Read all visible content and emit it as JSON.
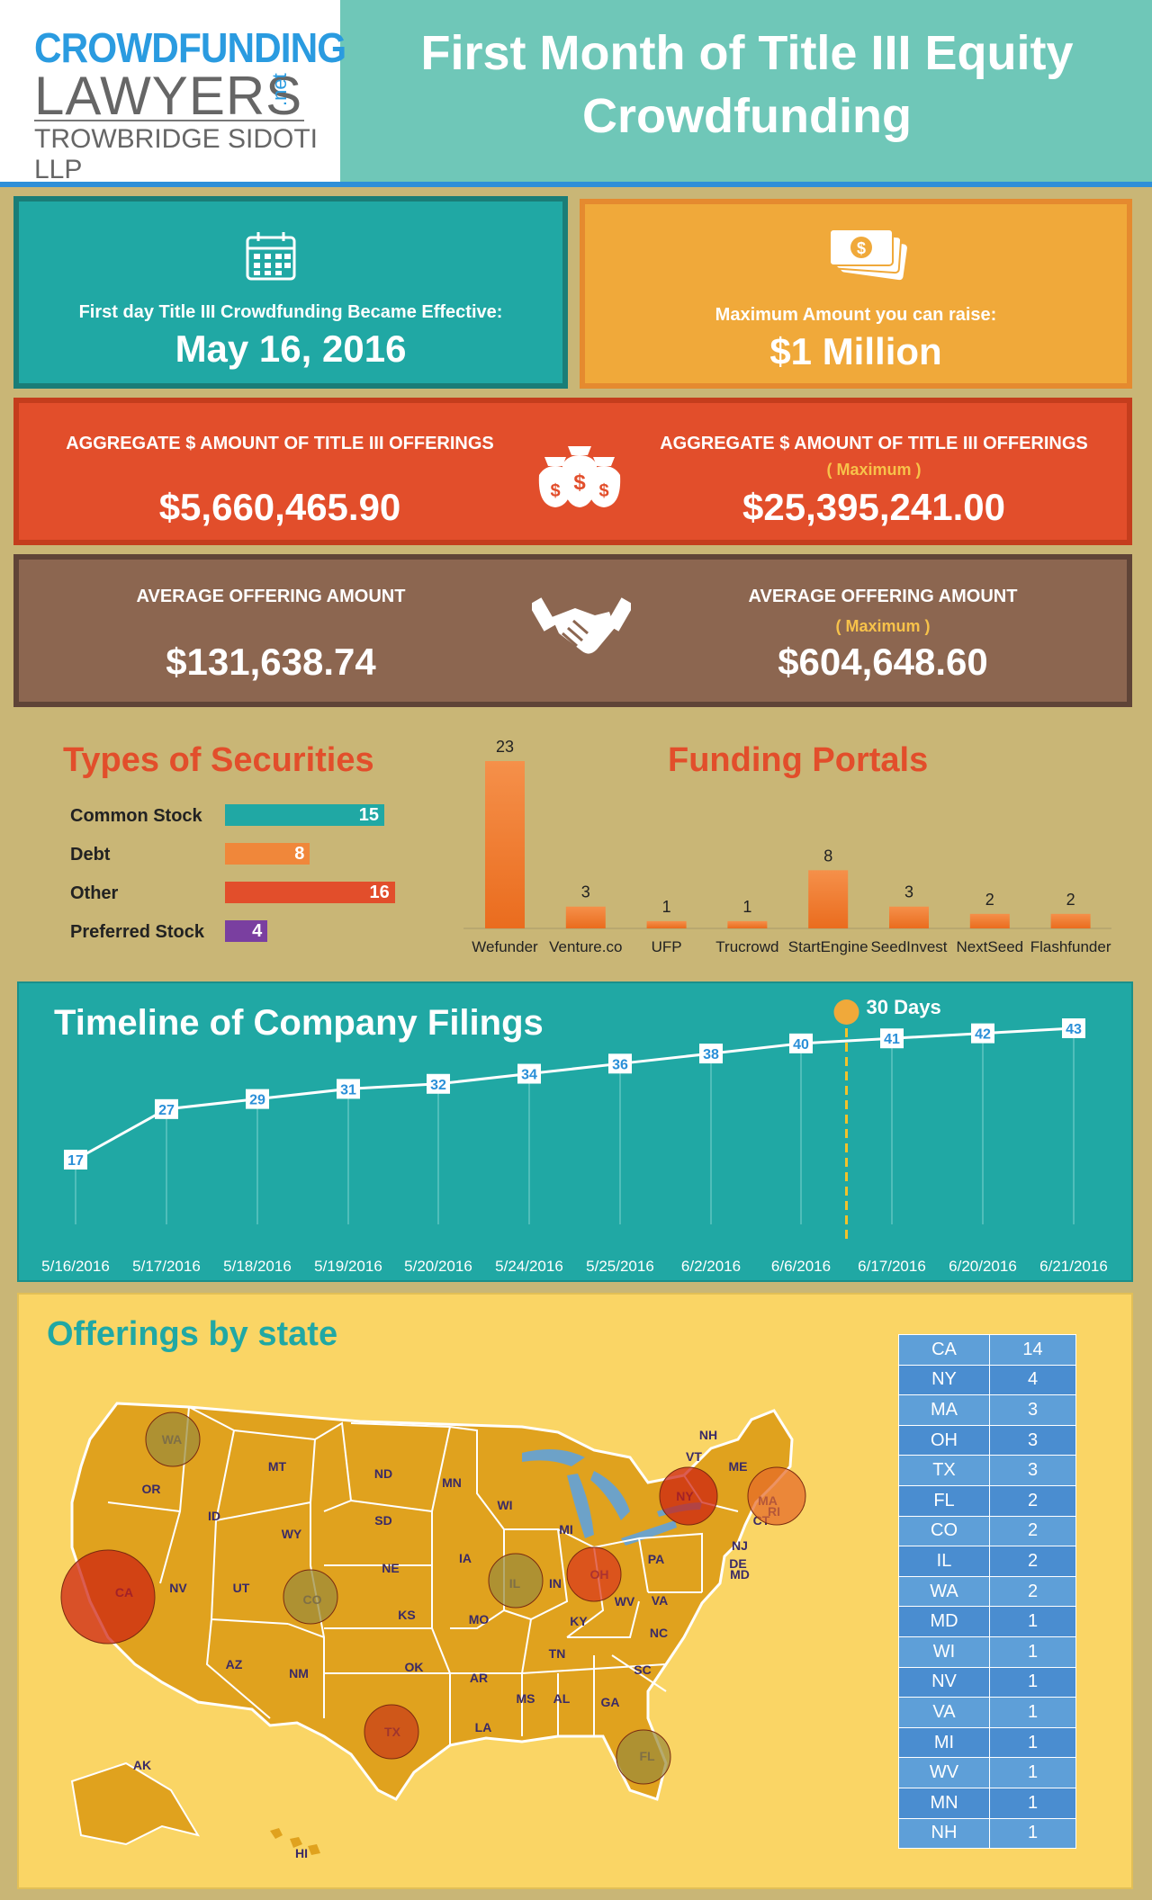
{
  "header": {
    "logo_line1": "CROWDFUNDING",
    "logo_line2": "LAWYERS",
    "logo_net": ".net",
    "logo_line3": "TROWBRIDGE SIDOTI LLP",
    "title_line1": "First Month of Title III Equity",
    "title_line2": "Crowdfunding"
  },
  "cards": {
    "effective_label": "First day Title III Crowdfunding Became Effective:",
    "effective_value": "May 16, 2016",
    "max_label": "Maximum Amount you can raise:",
    "max_value": "$1 Million",
    "agg_label_left": "AGGREGATE $ AMOUNT OF TITLE III OFFERINGS",
    "agg_value_left": "$5,660,465.90",
    "agg_label_right": "AGGREGATE $ AMOUNT OF TITLE III OFFERINGS",
    "agg_note_right": "( Maximum )",
    "agg_value_right": "$25,395,241.00",
    "avg_label_left": "AVERAGE OFFERING AMOUNT",
    "avg_value_left": "$131,638.74",
    "avg_label_right": "AVERAGE OFFERING AMOUNT",
    "avg_note_right": "( Maximum )",
    "avg_value_right": "$604,648.60"
  },
  "colors": {
    "teal": "#20a8a4",
    "orange": "#f0a93a",
    "red": "#e24e2b",
    "brown": "#8c6650",
    "map_bg": "#fad565",
    "state_fill": "#e0a21e",
    "table_blue": "#5b9bd5"
  },
  "icons": [
    "calendar-icon",
    "money-stack-icon",
    "money-bags-icon",
    "handshake-icon"
  ],
  "chart_data": [
    {
      "type": "bar",
      "title": "Types of Securities",
      "orientation": "horizontal",
      "categories": [
        "Common Stock",
        "Debt",
        "Other",
        "Preferred Stock"
      ],
      "values": [
        15,
        8,
        16,
        4
      ],
      "colors": [
        "#20a8a4",
        "#f0873a",
        "#e24e2b",
        "#7a3fa0"
      ]
    },
    {
      "type": "bar",
      "title": "Funding Portals",
      "categories": [
        "Wefunder",
        "Venture.co",
        "UFP",
        "Trucrowd",
        "StartEngine",
        "SeedInvest",
        "NextSeed",
        "Flashfunder"
      ],
      "values": [
        23,
        3,
        1,
        1,
        8,
        3,
        2,
        2
      ],
      "ylim": [
        0,
        23
      ]
    },
    {
      "type": "line",
      "title": "Timeline of Company Filings",
      "categories": [
        "5/16/2016",
        "5/17/2016",
        "5/18/2016",
        "5/19/2016",
        "5/20/2016",
        "5/24/2016",
        "5/25/2016",
        "6/2/2016",
        "6/6/2016",
        "6/17/2016",
        "6/20/2016",
        "6/21/2016"
      ],
      "values": [
        17,
        27,
        29,
        31,
        32,
        34,
        36,
        38,
        40,
        41,
        42,
        43
      ],
      "annotation": "30 Days",
      "annotation_after": "6/6/2016"
    },
    {
      "type": "table",
      "title": "Offerings by state",
      "rows": [
        [
          "CA",
          14
        ],
        [
          "NY",
          4
        ],
        [
          "MA",
          3
        ],
        [
          "OH",
          3
        ],
        [
          "TX",
          3
        ],
        [
          "FL",
          2
        ],
        [
          "CO",
          2
        ],
        [
          "IL",
          2
        ],
        [
          "WA",
          2
        ],
        [
          "MD",
          1
        ],
        [
          "WI",
          1
        ],
        [
          "NV",
          1
        ],
        [
          "VA",
          1
        ],
        [
          "MI",
          1
        ],
        [
          "WV",
          1
        ],
        [
          "MN",
          1
        ],
        [
          "NH",
          1
        ]
      ]
    }
  ],
  "map": {
    "state_labels": [
      "WA",
      "OR",
      "CA",
      "NV",
      "ID",
      "MT",
      "WY",
      "UT",
      "CO",
      "AZ",
      "NM",
      "ND",
      "SD",
      "NE",
      "KS",
      "OK",
      "TX",
      "MN",
      "IA",
      "MO",
      "AR",
      "LA",
      "WI",
      "IL",
      "MI",
      "IN",
      "OH",
      "KY",
      "TN",
      "MS",
      "AL",
      "GA",
      "FL",
      "SC",
      "NC",
      "VA",
      "WV",
      "PA",
      "NY",
      "VT",
      "NH",
      "ME",
      "MA",
      "RI",
      "CT",
      "NJ",
      "DE",
      "MD",
      "AK",
      "HI"
    ],
    "bubbles": [
      {
        "state": "CA",
        "count": 14
      },
      {
        "state": "NY",
        "count": 4
      },
      {
        "state": "MA",
        "count": 3
      },
      {
        "state": "OH",
        "count": 3
      },
      {
        "state": "TX",
        "count": 3
      },
      {
        "state": "FL",
        "count": 2
      },
      {
        "state": "CO",
        "count": 2
      },
      {
        "state": "IL",
        "count": 2
      },
      {
        "state": "WA",
        "count": 2
      }
    ]
  }
}
